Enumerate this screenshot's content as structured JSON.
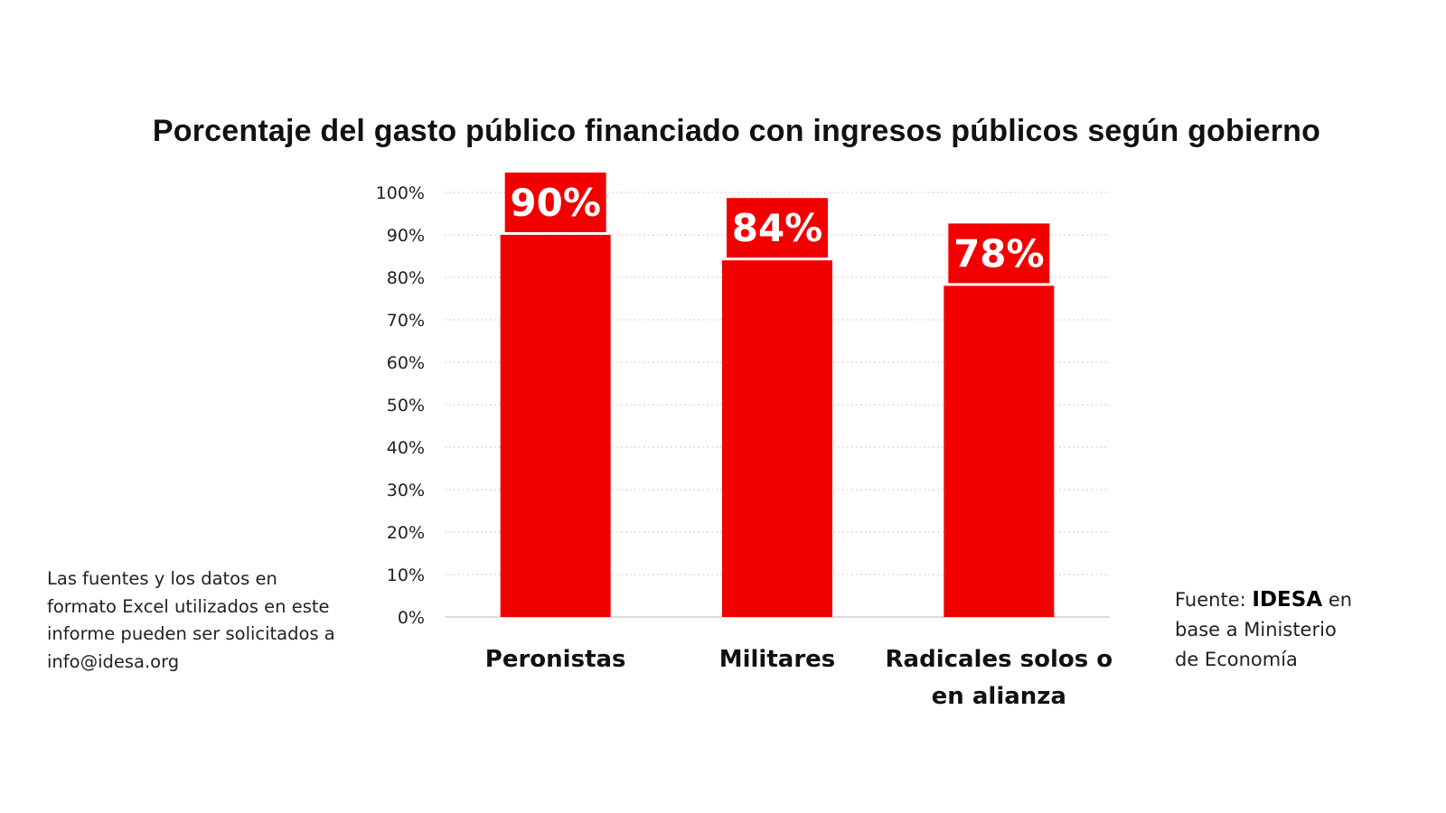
{
  "chart_data": {
    "type": "bar",
    "title": "Porcentaje del gasto público financiado con ingresos públicos según gobierno",
    "categories": [
      "Peronistas",
      "Militares",
      "Radicales solos o en alianza"
    ],
    "category_lines": [
      [
        "Peronistas"
      ],
      [
        "Militares"
      ],
      [
        "Radicales solos o",
        "en alianza"
      ]
    ],
    "values": [
      90,
      84,
      78
    ],
    "data_labels": [
      "90%",
      "84%",
      "78%"
    ],
    "yticks": [
      "0%",
      "10%",
      "20%",
      "30%",
      "40%",
      "50%",
      "60%",
      "70%",
      "80%",
      "90%",
      "100%"
    ],
    "ylim": [
      0,
      100
    ],
    "xlabel": "",
    "ylabel": "",
    "grid": true,
    "bar_color": "#f20000"
  },
  "notes": {
    "left": "Las fuentes y los datos en formato Excel utilizados en este informe pueden ser solicitados a info@idesa.org",
    "right_prefix": "Fuente:",
    "right_brand": "IDESA",
    "right_suffix": "en",
    "right_line2": "base a Ministerio",
    "right_line3": "de Economía"
  }
}
